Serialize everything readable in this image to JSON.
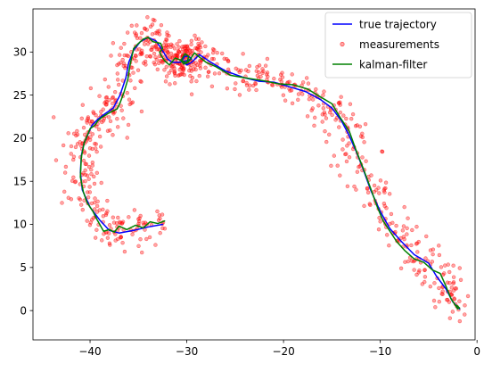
{
  "chart_data": {
    "type": "line",
    "title": "",
    "xlabel": "",
    "ylabel": "",
    "xlim": [
      -45.9,
      -0.2
    ],
    "ylim": [
      -3.4,
      35.0
    ],
    "x_ticks": [
      -40,
      -30,
      -20,
      -10,
      0
    ],
    "y_ticks": [
      0,
      5,
      10,
      15,
      20,
      25,
      30
    ],
    "x_tick_labels": [
      "−40",
      "−30",
      "−20",
      "−10",
      "0"
    ],
    "y_tick_labels": [
      "0",
      "5",
      "10",
      "15",
      "20",
      "25",
      "30"
    ],
    "grid": false,
    "legend_position": "top-right",
    "legend_labels": [
      "true trajectory",
      "measurements",
      "kalman-filter"
    ],
    "series": [
      {
        "name": "true trajectory",
        "kind": "line",
        "color": "#0000ff",
        "x": [
          -32.5,
          -34.0,
          -35.5,
          -37.0,
          -38.0,
          -39.0,
          -40.0,
          -40.8,
          -41.0,
          -40.9,
          -40.6,
          -40.2,
          -39.8,
          -39.2,
          -38.5,
          -37.6,
          -36.9,
          -36.3,
          -36.0,
          -35.5,
          -34.8,
          -34.0,
          -33.2,
          -32.7,
          -32.3,
          -32.0,
          -31.5,
          -30.8,
          -30.0,
          -29.5,
          -29.8,
          -30.2,
          -30.5,
          -30.0,
          -29.5,
          -28.7,
          -27.5,
          -26.0,
          -24.0,
          -22.5,
          -21.0,
          -19.5,
          -17.7,
          -16.2,
          -15.0,
          -14.0,
          -13.3,
          -12.5,
          -11.8,
          -11.0,
          -10.0,
          -9.0,
          -7.8,
          -6.5,
          -5.0,
          -4.2,
          -3.2,
          -2.5,
          -1.8
        ],
        "y": [
          10.0,
          9.7,
          9.3,
          9.0,
          9.3,
          10.5,
          12.0,
          14.0,
          16.0,
          18.0,
          19.5,
          20.5,
          21.5,
          22.2,
          22.8,
          23.5,
          25.0,
          27.0,
          28.8,
          30.2,
          31.2,
          31.7,
          31.3,
          30.5,
          29.8,
          29.2,
          28.8,
          28.8,
          29.0,
          29.2,
          29.5,
          29.5,
          29.0,
          28.5,
          28.8,
          29.7,
          28.8,
          27.8,
          27.0,
          26.6,
          26.5,
          26.0,
          25.4,
          24.5,
          23.5,
          22.0,
          20.5,
          18.5,
          16.5,
          14.0,
          11.5,
          9.5,
          8.0,
          6.5,
          5.5,
          4.0,
          2.5,
          1.0,
          0.2
        ]
      },
      {
        "name": "kalman-filter",
        "kind": "line",
        "color": "#008000",
        "x": [
          -32.3,
          -33.0,
          -33.8,
          -34.5,
          -35.3,
          -36.2,
          -37.0,
          -37.5,
          -38.0,
          -38.6,
          -39.3,
          -39.7,
          -40.3,
          -40.7,
          -41.0,
          -40.9,
          -40.6,
          -40.3,
          -40.0,
          -39.5,
          -39.2,
          -38.8,
          -38.1,
          -37.2,
          -36.9,
          -36.5,
          -36.1,
          -35.9,
          -35.5,
          -35.0,
          -34.5,
          -34.0,
          -33.5,
          -32.7,
          -32.5,
          -32.8,
          -32.7,
          -32.3,
          -31.8,
          -31.2,
          -30.5,
          -30.0,
          -29.8,
          -30.2,
          -30.6,
          -30.3,
          -29.8,
          -29.2,
          -28.8,
          -28.0,
          -27.0,
          -25.5,
          -24.0,
          -22.2,
          -20.5,
          -19.0,
          -17.5,
          -16.2,
          -15.0,
          -14.2,
          -13.2,
          -12.5,
          -11.8,
          -11.0,
          -10.3,
          -9.7,
          -9.0,
          -8.3,
          -7.5,
          -6.5,
          -5.5,
          -4.6,
          -3.8,
          -3.2,
          -2.7,
          -2.0,
          -1.8,
          -2.1
        ],
        "y": [
          10.4,
          10.1,
          10.3,
          9.6,
          9.9,
          9.4,
          9.8,
          9.1,
          9.4,
          9.2,
          10.6,
          11.5,
          12.5,
          13.8,
          15.5,
          17.8,
          19.5,
          20.3,
          21.1,
          21.5,
          22.0,
          22.4,
          22.9,
          23.4,
          24.1,
          25.3,
          26.8,
          28.3,
          30.4,
          31.0,
          31.5,
          31.7,
          31.2,
          31.0,
          30.4,
          30.0,
          29.7,
          29.0,
          28.5,
          29.3,
          29.0,
          28.7,
          29.5,
          29.8,
          29.0,
          28.6,
          28.9,
          29.9,
          29.5,
          28.8,
          28.3,
          27.3,
          27.0,
          26.7,
          26.3,
          26.2,
          25.7,
          24.8,
          24.0,
          22.5,
          20.8,
          18.6,
          16.6,
          14.2,
          12.0,
          10.4,
          9.2,
          8.0,
          7.0,
          6.0,
          5.6,
          4.7,
          4.3,
          2.8,
          1.4,
          0.2,
          0.3,
          0.6
        ]
      },
      {
        "name": "measurements",
        "kind": "scatter",
        "color": "#ff0000",
        "clusters": [
          {
            "x0": -41.0,
            "x1": -30.5,
            "y0": 7.5,
            "y1": 12.5
          },
          {
            "x0": -44.5,
            "x1": -38.0,
            "y0": 12.0,
            "y1": 23.0
          },
          {
            "x0": -40.5,
            "x1": -35.0,
            "y0": 20.0,
            "y1": 26.0
          },
          {
            "x0": -38.5,
            "x1": -33.0,
            "y0": 24.0,
            "y1": 33.0
          },
          {
            "x0": -35.0,
            "x1": -25.0,
            "y0": 26.0,
            "y1": 33.5
          },
          {
            "x0": -27.0,
            "x1": -16.0,
            "y0": 24.0,
            "y1": 29.5
          },
          {
            "x0": -17.0,
            "x1": -11.0,
            "y0": 16.0,
            "y1": 26.0
          },
          {
            "x0": -12.5,
            "x1": -6.0,
            "y0": 6.0,
            "y1": 17.0
          },
          {
            "x0": -7.5,
            "x1": -1.0,
            "y0": -1.5,
            "y1": 8.0
          }
        ],
        "count": 900
      }
    ]
  }
}
